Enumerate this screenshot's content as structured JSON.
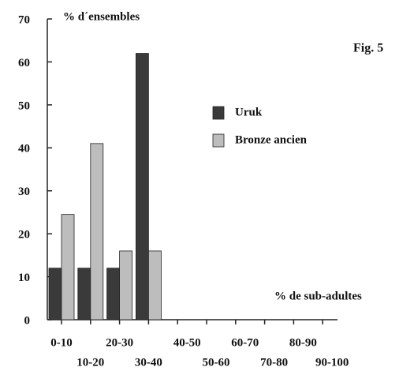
{
  "chart_data": {
    "type": "bar",
    "title": "Fig. 5",
    "y_label": "% d´ensembles",
    "x_label": "% de sub-adultes",
    "categories": [
      "0-10",
      "10-20",
      "20-30",
      "30-40",
      "40-50",
      "50-60",
      "60-70",
      "70-80",
      "80-90",
      "90-100"
    ],
    "series": [
      {
        "name": "Uruk",
        "color": "#3a3a3a",
        "values": [
          12,
          12,
          12,
          62,
          null,
          null,
          null,
          null,
          null,
          null
        ]
      },
      {
        "name": "Bronze ancien",
        "color": "#bdbdbd",
        "values": [
          24.5,
          41,
          16,
          16,
          null,
          null,
          null,
          null,
          null,
          null
        ]
      }
    ],
    "ylim": [
      0,
      70
    ],
    "yticks": [
      0,
      10,
      20,
      30,
      40,
      50,
      60,
      70
    ],
    "legend": "right",
    "grid": false
  }
}
